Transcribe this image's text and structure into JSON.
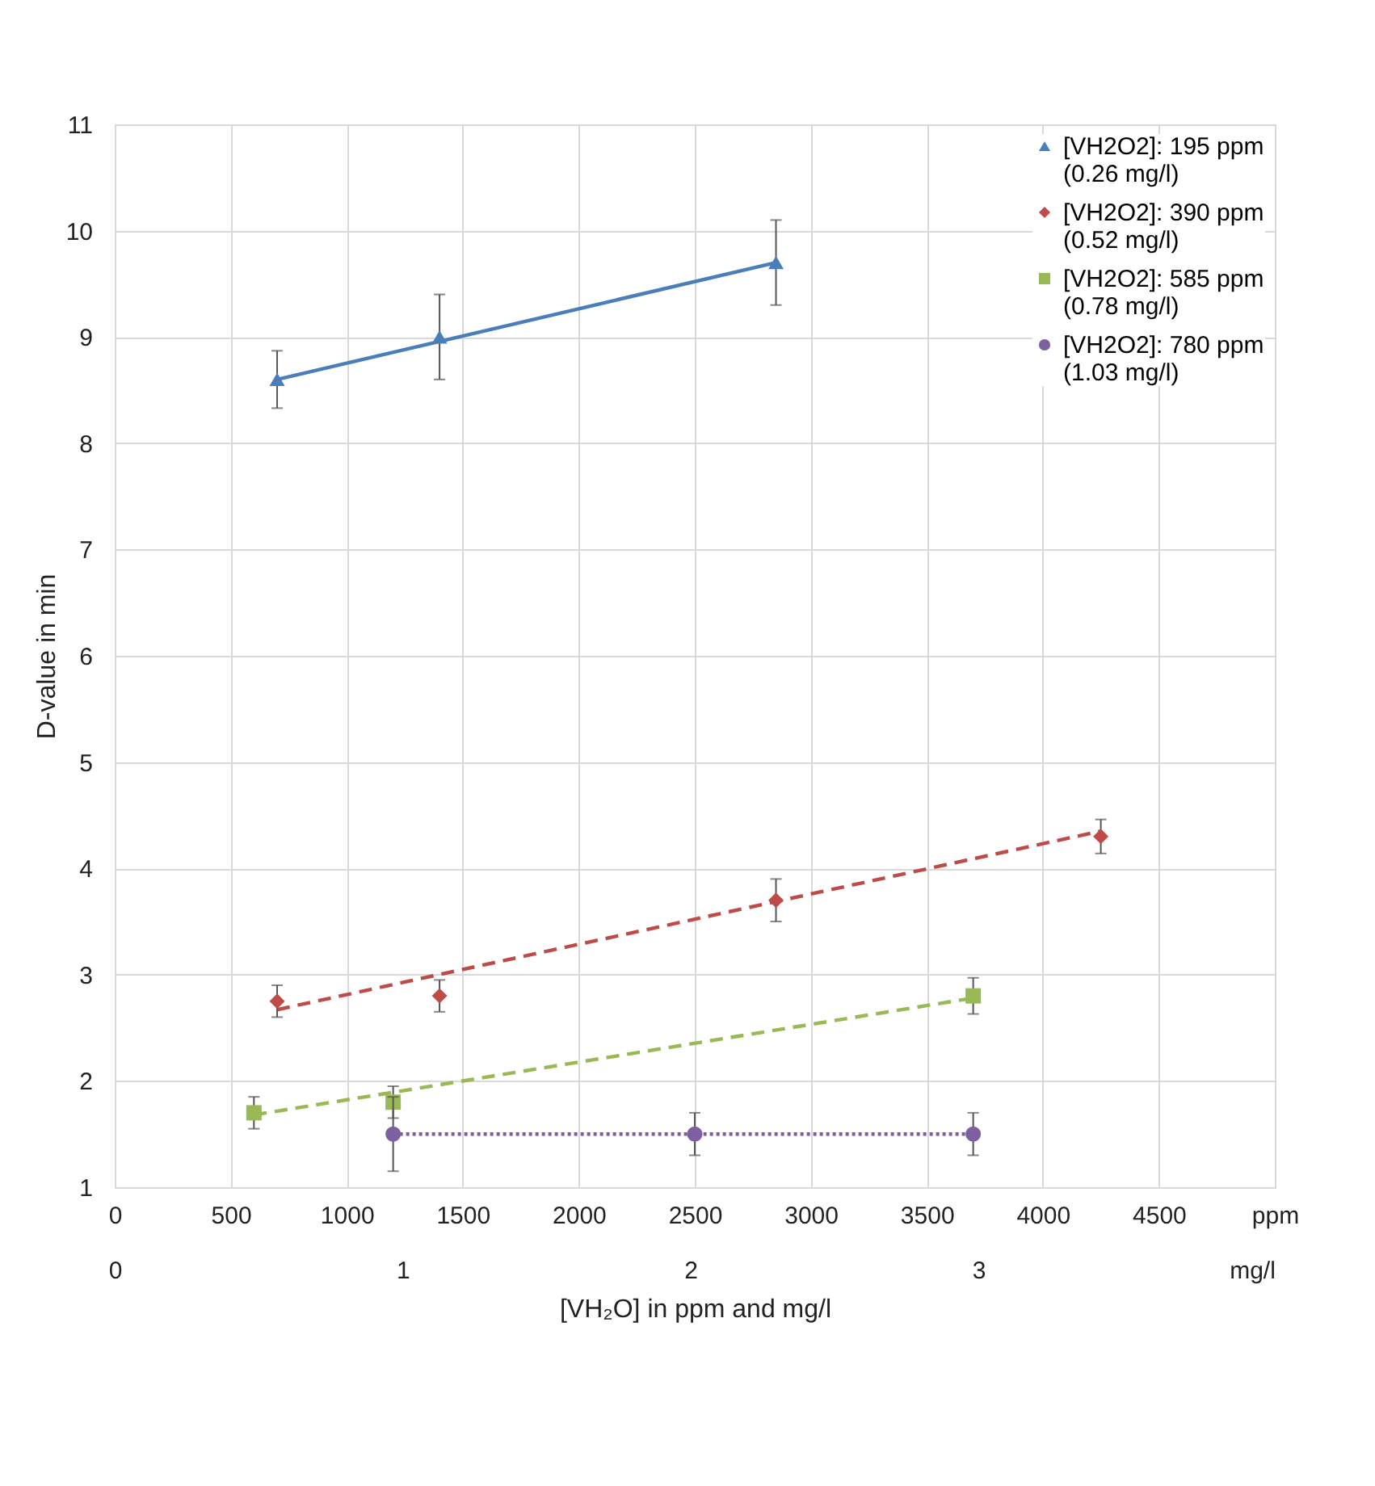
{
  "chart_data": {
    "type": "scatter",
    "xlabel": "[VH₂O] in ppm and mg/l",
    "ylabel": "D-value in min",
    "xlim": [
      0,
      5000
    ],
    "xticks": [
      0,
      500,
      1000,
      1500,
      2000,
      2500,
      3000,
      3500,
      4000,
      4500,
      {
        "value": 5000,
        "label": "ppm"
      }
    ],
    "x2lim": [
      0,
      4.03
    ],
    "x2ticks": [
      0,
      1,
      2,
      3,
      {
        "value": 3.95,
        "label": "mg/l"
      }
    ],
    "ylim": [
      1,
      11
    ],
    "yticks": [
      1,
      2,
      3,
      4,
      5,
      6,
      7,
      8,
      9,
      10,
      11
    ],
    "grid": true,
    "legend": "top right",
    "series": [
      {
        "name": "[VH2O2]: 195 ppm (0.26 mg/l)",
        "color": "#4a7ebb",
        "marker": "triangle",
        "x": [
          700,
          1400,
          2850
        ],
        "values": [
          8.6,
          9.0,
          9.7
        ],
        "errors": [
          0.27,
          0.4,
          0.4
        ]
      },
      {
        "name": "[VH2O2]: 390 ppm (0.52 mg/l)",
        "color": "#be4b48",
        "marker": "diamond",
        "x": [
          700,
          1400,
          2850,
          4250
        ],
        "values": [
          2.75,
          2.8,
          3.7,
          4.3
        ],
        "errors": [
          0.15,
          0.15,
          0.2,
          0.16
        ]
      },
      {
        "name": "[VH2O2]: 585 ppm (0.78 mg/l)",
        "color": "#98b954",
        "marker": "square",
        "x": [
          600,
          1200,
          3700
        ],
        "values": [
          1.7,
          1.8,
          2.8
        ],
        "errors": [
          0.15,
          0.15,
          0.17
        ]
      },
      {
        "name": "[VH2O2]: 780 ppm (1.03 mg/l)",
        "color": "#7d60a0",
        "marker": "circle",
        "x": [
          1200,
          2500,
          3700
        ],
        "values": [
          1.5,
          1.5,
          1.5
        ],
        "errors": [
          0.35,
          0.2,
          0.2
        ]
      },
      {
        "type": "line",
        "color": "#4a7ebb",
        "line_style": "solid",
        "x": [
          700,
          2850
        ],
        "values": [
          8.6,
          9.7
        ]
      },
      {
        "type": "line",
        "color": "#be4b48",
        "line_style": "dashed",
        "x": [
          700,
          4250
        ],
        "values": [
          2.67,
          4.35
        ]
      },
      {
        "type": "line",
        "color": "#98b954",
        "line_style": "dashed",
        "x": [
          600,
          3700
        ],
        "values": [
          1.68,
          2.78
        ]
      },
      {
        "type": "line",
        "color": "#7d60a0",
        "line_style": "dotted",
        "x": [
          1200,
          3700
        ],
        "values": [
          1.5,
          1.5
        ]
      }
    ]
  }
}
